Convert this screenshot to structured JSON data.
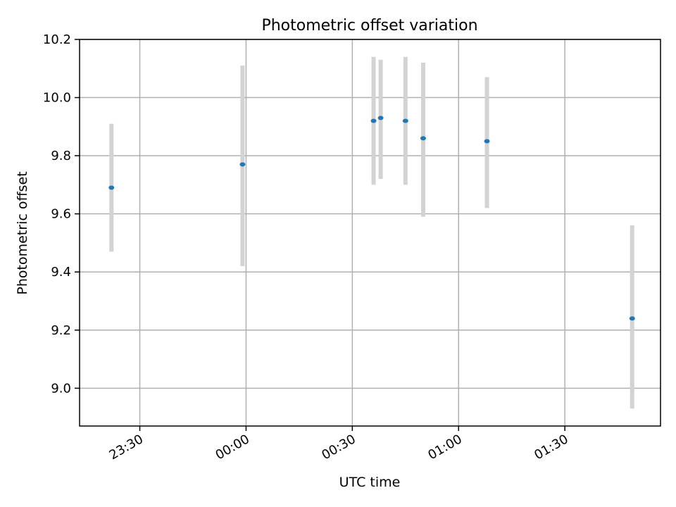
{
  "chart_data": {
    "type": "scatter",
    "title": "Photometric offset variation",
    "xlabel": "UTC time",
    "ylabel": "Photometric offset",
    "x_tick_labels": [
      "23:30",
      "00:00",
      "00:30",
      "01:00",
      "01:30"
    ],
    "x_tick_minutes": [
      -30,
      0,
      30,
      60,
      90
    ],
    "y_ticks": [
      9.0,
      9.2,
      9.4,
      9.6,
      9.8,
      10.0,
      10.2
    ],
    "y_tick_labels": [
      "9.0",
      "9.2",
      "9.4",
      "9.6",
      "9.8",
      "10.0",
      "10.2"
    ],
    "xlim": [
      "23:13",
      "01:57"
    ],
    "ylim": [
      8.87,
      10.2
    ],
    "grid": true,
    "colors": {
      "point": "#1f77b4",
      "errorbar": "#d3d3d3",
      "grid": "#b0b0b0"
    },
    "points": [
      {
        "x": "23:22",
        "y": 9.69,
        "ylow": 9.47,
        "yhigh": 9.91
      },
      {
        "x": "23:59",
        "y": 9.77,
        "ylow": 9.42,
        "yhigh": 10.11
      },
      {
        "x": "00:36",
        "y": 9.92,
        "ylow": 9.7,
        "yhigh": 10.14
      },
      {
        "x": "00:38",
        "y": 9.93,
        "ylow": 9.72,
        "yhigh": 10.13
      },
      {
        "x": "00:45",
        "y": 9.92,
        "ylow": 9.7,
        "yhigh": 10.14
      },
      {
        "x": "00:50",
        "y": 9.86,
        "ylow": 9.59,
        "yhigh": 10.12
      },
      {
        "x": "01:08",
        "y": 9.85,
        "ylow": 9.62,
        "yhigh": 10.07
      },
      {
        "x": "01:49",
        "y": 9.24,
        "ylow": 8.93,
        "yhigh": 9.56
      }
    ]
  }
}
